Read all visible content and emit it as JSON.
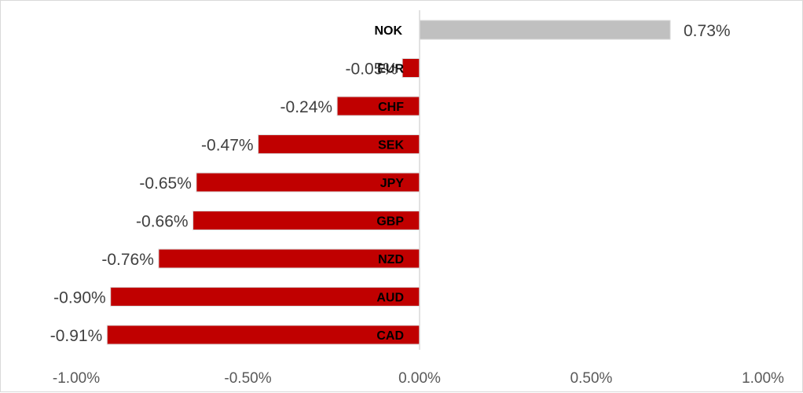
{
  "chart_data": {
    "type": "bar",
    "orientation": "horizontal",
    "categories": [
      "NOK",
      "EUR",
      "CHF",
      "SEK",
      "JPY",
      "GBP",
      "NZD",
      "AUD",
      "CAD"
    ],
    "values": [
      0.73,
      -0.05,
      -0.24,
      -0.47,
      -0.65,
      -0.66,
      -0.76,
      -0.9,
      -0.91
    ],
    "value_labels": [
      "0.73%",
      "-0.05%",
      "-0.24%",
      "-0.47%",
      "-0.65%",
      "-0.66%",
      "-0.76%",
      "-0.90%",
      "-0.91%"
    ],
    "xlim": [
      -1.0,
      1.0
    ],
    "x_ticks": [
      -1.0,
      -0.5,
      0.0,
      0.5,
      1.0
    ],
    "x_tick_labels": [
      "-1.00%",
      "-0.50%",
      "0.00%",
      "0.50%",
      "1.00%"
    ],
    "title": "",
    "xlabel": "",
    "ylabel": "",
    "grid": false,
    "legend": "none",
    "colors": {
      "positive": "#c0c0c0",
      "negative": "#c00000",
      "axis": "#d9d9d9"
    }
  }
}
